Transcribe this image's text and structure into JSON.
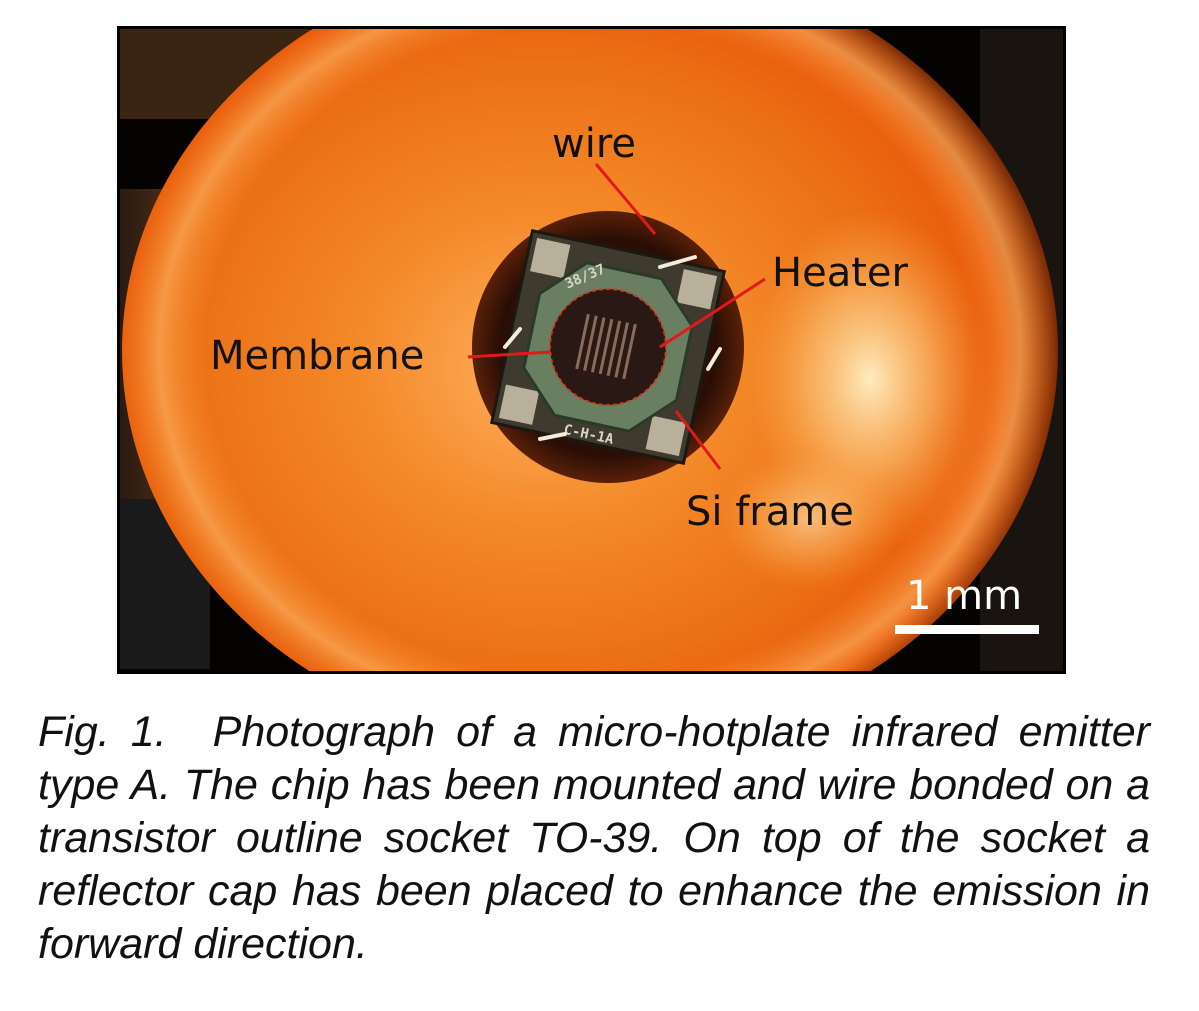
{
  "figure": {
    "labels": {
      "wire": "wire",
      "heater": "Heater",
      "membrane": "Membrane",
      "si_frame": "Si frame"
    },
    "chip_markings": {
      "top": "38/37",
      "bottom": "C-H-1A"
    },
    "scale_bar": "1 mm",
    "colors": {
      "reflector_orange": "#f2801c",
      "glow": "#ffe2a0",
      "annotation_red": "#e01a1a",
      "background": "#050302"
    }
  },
  "caption": {
    "number": "Fig. 1.",
    "text": "Photograph of a micro-hotplate infrared emitter type A. The chip has been mounted and wire bonded on a transistor outline socket TO-39. On top of the socket a reflector cap has been placed to enhance the emission in forward direction."
  }
}
